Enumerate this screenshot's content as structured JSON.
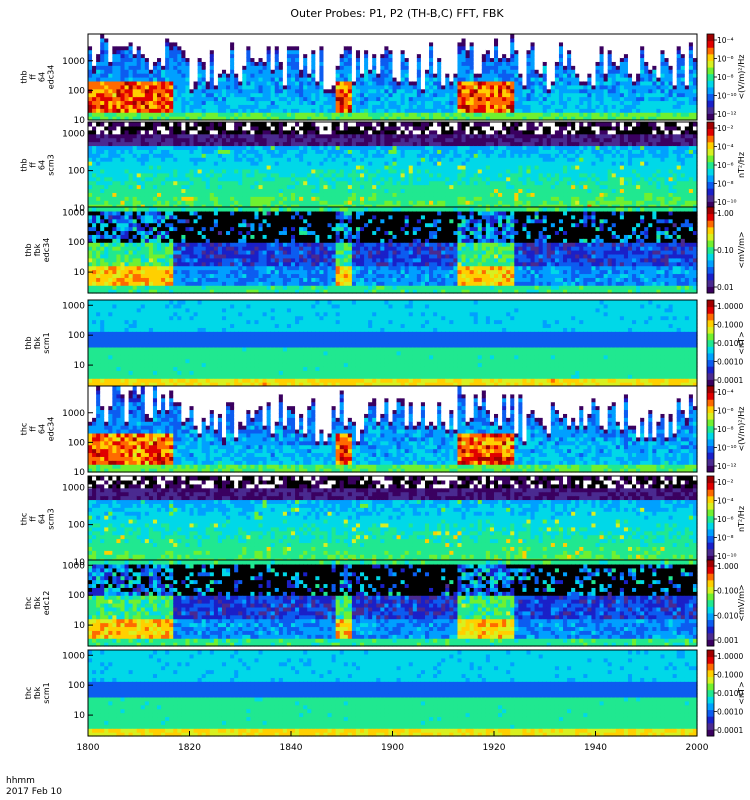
{
  "title": "Outer Probes: P1, P2 (TH-B,C) FFT, FBK",
  "time_label": {
    "line1": "hhmm",
    "line2": "2017 Feb 10"
  },
  "colors": {
    "colormap": [
      "#ffffff",
      "#000000",
      "#3a0060",
      "#4a2a90",
      "#1a20c8",
      "#0c5cf0",
      "#00a0ff",
      "#00d8e8",
      "#20e890",
      "#70f030",
      "#d8f020",
      "#ffd000",
      "#ff6a00",
      "#e00000",
      "#a00000"
    ]
  },
  "chart_data": {
    "type": "heatmap",
    "title": "Outer Probes: P1, P2 (TH-B,C) FFT, FBK",
    "x_axis": {
      "label": "hhmm 2017 Feb 10",
      "range": [
        "1800",
        "2000"
      ],
      "ticks": [
        "1800",
        "1820",
        "1840",
        "1900",
        "1920",
        "1940",
        "2000"
      ]
    },
    "panels": [
      {
        "id": "thb-ff-edc34",
        "ylabel": [
          "thb",
          "ff",
          "64",
          "edc34"
        ],
        "yticks": [
          "1000",
          "100",
          "10"
        ],
        "yscale": "log",
        "ylim": [
          10,
          8000
        ],
        "colorbar_label": "<(V/m)²/Hz",
        "colorbar_ticks": [
          "10⁻⁴",
          "10⁻⁶",
          "10⁻⁸",
          "10⁻¹⁰",
          "10⁻¹²"
        ],
        "style": "fft_e"
      },
      {
        "id": "thb-ff-scm3",
        "ylabel": [
          "thb",
          "ff",
          "64",
          "scm3"
        ],
        "yticks": [
          "1000",
          "100",
          "10"
        ],
        "yscale": "log",
        "ylim": [
          10,
          2000
        ],
        "colorbar_label": "nT²/Hz",
        "colorbar_ticks": [
          "10⁻²",
          "10⁻⁴",
          "10⁻⁶",
          "10⁻⁸",
          "10⁻¹⁰"
        ],
        "style": "fft_b"
      },
      {
        "id": "thb-fbk-edc34",
        "ylabel": [
          "thb",
          "fbk",
          "edc34"
        ],
        "yticks": [
          "1000",
          "100",
          "10"
        ],
        "yscale": "log",
        "ylim": [
          2,
          1500
        ],
        "colorbar_label": "<mV/m>",
        "colorbar_ticks": [
          "1.00",
          "0.10",
          "0.01"
        ],
        "style": "fbk_e"
      },
      {
        "id": "thb-fbk-scm1",
        "ylabel": [
          "thb",
          "fbk",
          "scm1"
        ],
        "yticks": [
          "1000",
          "100",
          "10"
        ],
        "yscale": "log",
        "ylim": [
          2,
          1500
        ],
        "colorbar_label": "<nT>",
        "colorbar_ticks": [
          "1.0000",
          "0.1000",
          "0.0100",
          "0.0010",
          "0.0001"
        ],
        "style": "fbk_b"
      },
      {
        "id": "thc-ff-edc34",
        "ylabel": [
          "thc",
          "ff",
          "64",
          "edc34"
        ],
        "yticks": [
          "1000",
          "100",
          "10"
        ],
        "yscale": "log",
        "ylim": [
          10,
          8000
        ],
        "colorbar_label": "<(V/m)²/Hz",
        "colorbar_ticks": [
          "10⁻⁴",
          "10⁻⁶",
          "10⁻⁸",
          "10⁻¹⁰",
          "10⁻¹²"
        ],
        "style": "fft_e"
      },
      {
        "id": "thc-ff-scm3",
        "ylabel": [
          "thc",
          "ff",
          "64",
          "scm3"
        ],
        "yticks": [
          "1000",
          "100",
          "10"
        ],
        "yscale": "log",
        "ylim": [
          10,
          2000
        ],
        "colorbar_label": "nT²/Hz",
        "colorbar_ticks": [
          "10⁻²",
          "10⁻⁴",
          "10⁻⁶",
          "10⁻⁸",
          "10⁻¹⁰"
        ],
        "style": "fft_b"
      },
      {
        "id": "thc-fbk-edc12",
        "ylabel": [
          "thc",
          "fbk",
          "edc12"
        ],
        "yticks": [
          "1000",
          "100",
          "10"
        ],
        "yscale": "log",
        "ylim": [
          2,
          1500
        ],
        "colorbar_label": "<mV/m>",
        "colorbar_ticks": [
          "1.000",
          "0.100",
          "0.010",
          "0.001"
        ],
        "style": "fbk_e"
      },
      {
        "id": "thc-fbk-scm1",
        "ylabel": [
          "thc",
          "fbk",
          "scm1"
        ],
        "yticks": [
          "1000",
          "100",
          "10"
        ],
        "yscale": "log",
        "ylim": [
          2,
          1500
        ],
        "colorbar_label": "<nT>",
        "colorbar_ticks": [
          "1.0000",
          "0.1000",
          "0.0100",
          "0.0010",
          "0.0001"
        ],
        "style": "fbk_b"
      }
    ]
  }
}
